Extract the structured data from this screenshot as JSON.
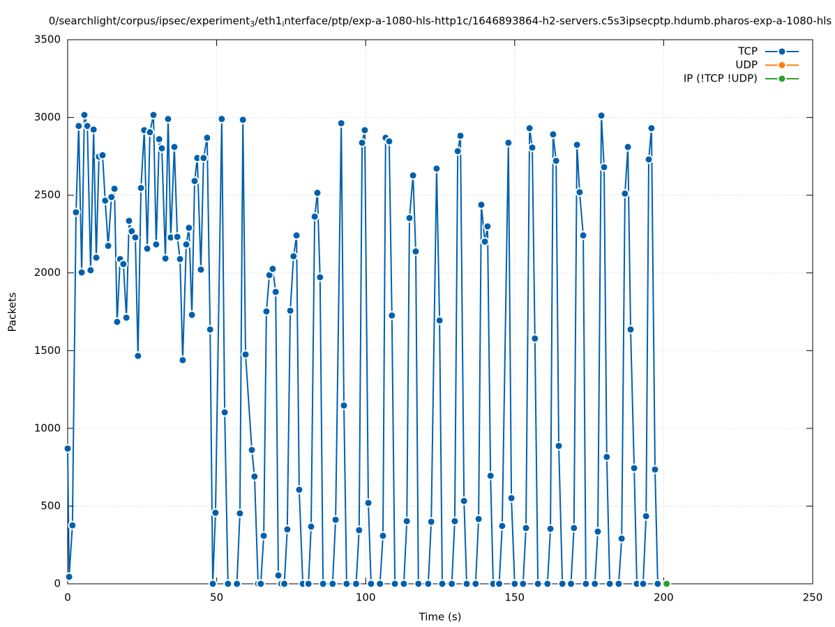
{
  "chart_data": {
    "type": "line",
    "title": [
      {
        "text": "0/searchlight/corpus/ipsec/experiment"
      },
      {
        "text": "3",
        "sub": true
      },
      {
        "text": "/eth1"
      },
      {
        "text": "i",
        "sub": true
      },
      {
        "text": "nterface/ptp/exp-a-1080-hls-http1c/1646893864-h2-servers.c5s3ipsecptp.hdumb.pharos-exp-a-1080-hls"
      }
    ],
    "x_label": "Time (s)",
    "y_label": "Packets",
    "xlim": [
      0,
      250
    ],
    "xticks": [
      0,
      50,
      100,
      150,
      200,
      250
    ],
    "ylim": [
      0,
      3500
    ],
    "yticks": [
      0,
      500,
      1000,
      1500,
      2000,
      2500,
      3000,
      3500
    ],
    "grid": true,
    "legend": "top-right",
    "series": [
      {
        "name": "TCP",
        "color": "#0060ad",
        "x": [
          0,
          0.5,
          1.6,
          2.8,
          3.7,
          4.7,
          5.6,
          6.6,
          7.7,
          8.7,
          9.6,
          10.5,
          11.7,
          12.6,
          13.6,
          14.7,
          15.7,
          16.6,
          17.6,
          18.7,
          19.7,
          20.6,
          21.5,
          22.7,
          23.6,
          24.6,
          25.7,
          26.7,
          27.6,
          28.8,
          29.7,
          30.7,
          31.6,
          32.8,
          33.7,
          34.6,
          35.8,
          36.8,
          37.7,
          38.6,
          39.8,
          40.7,
          41.7,
          42.6,
          43.5,
          44.7,
          45.6,
          46.8,
          47.8,
          48.7,
          49.6,
          51.7,
          52.7,
          53.8,
          56.8,
          57.8,
          58.8,
          59.7,
          61.8,
          62.7,
          63.9,
          64.8,
          65.8,
          66.7,
          67.7,
          68.8,
          69.8,
          70.7,
          71.7,
          72.7,
          73.7,
          74.7,
          75.8,
          76.8,
          77.7,
          78.9,
          80.8,
          81.7,
          82.9,
          83.8,
          84.7,
          85.7,
          88.9,
          89.9,
          91.8,
          92.7,
          93.6,
          96.8,
          97.8,
          98.8,
          99.7,
          100.9,
          101.8,
          104.8,
          105.8,
          106.7,
          107.9,
          108.8,
          109.8,
          112.8,
          113.8,
          114.7,
          115.9,
          116.8,
          117.7,
          121,
          122,
          123.8,
          124.8,
          125.7,
          128.9,
          129.9,
          130.9,
          131.8,
          133,
          133.9,
          136.9,
          137.9,
          138.8,
          140,
          140.9,
          141.9,
          142.8,
          144.8,
          145.8,
          147.9,
          148.9,
          150,
          152.8,
          153.8,
          155,
          155.9,
          156.8,
          157.8,
          161,
          162,
          162.9,
          163.9,
          164.8,
          166,
          168.9,
          169.9,
          170.9,
          171.8,
          173,
          173.9,
          176.9,
          177.9,
          179.1,
          180,
          180.9,
          181.9,
          184.9,
          185.9,
          187,
          188,
          188.9,
          190.1,
          191,
          193.1,
          194.1,
          195,
          195.9,
          197.1,
          198
        ],
        "values": [
          870,
          45,
          376,
          2390,
          2945,
          2003,
          3016,
          2945,
          2017,
          2922,
          2098,
          2748,
          2757,
          2465,
          2174,
          2488,
          2541,
          1685,
          2089,
          2057,
          1712,
          2335,
          2268,
          2228,
          1466,
          2546,
          2918,
          2156,
          2905,
          3016,
          2183,
          2860,
          2801,
          2093,
          2990,
          2228,
          2810,
          2232,
          2089,
          1439,
          2183,
          2290,
          1730,
          2591,
          2739,
          2021,
          2739,
          2869,
          1636,
          0,
          457,
          2990,
          1103,
          0,
          0,
          453,
          2985,
          1475,
          861,
          690,
          0,
          0,
          309,
          1752,
          1986,
          2026,
          1878,
          54,
          0,
          0,
          350,
          1757,
          2107,
          2241,
          605,
          0,
          0,
          368,
          2362,
          2515,
          1972,
          0,
          0,
          412,
          2963,
          1147,
          0,
          0,
          345,
          2837,
          2918,
          520,
          0,
          0,
          309,
          2869,
          2846,
          1726,
          0,
          0,
          403,
          2353,
          2627,
          2138,
          0,
          0,
          399,
          2671,
          1694,
          0,
          0,
          403,
          2783,
          2882,
          533,
          0,
          0,
          417,
          2438,
          2201,
          2299,
          695,
          0,
          0,
          372,
          2837,
          551,
          0,
          0,
          359,
          2931,
          2806,
          1578,
          0,
          0,
          354,
          2891,
          2721,
          887,
          0,
          0,
          359,
          2824,
          2519,
          2241,
          0,
          0,
          336,
          3012,
          2680,
          816,
          0,
          0,
          291,
          2510,
          2810,
          1636,
          744,
          0,
          0,
          435,
          2730,
          2931,
          735,
          0
        ]
      },
      {
        "name": "UDP",
        "color": "#ff7f0e",
        "x": [
          201
        ],
        "values": [
          0
        ]
      },
      {
        "name": "IP (!TCP  !UDP)",
        "color": "#2ca02c",
        "x": [
          201
        ],
        "values": [
          0
        ]
      }
    ]
  }
}
